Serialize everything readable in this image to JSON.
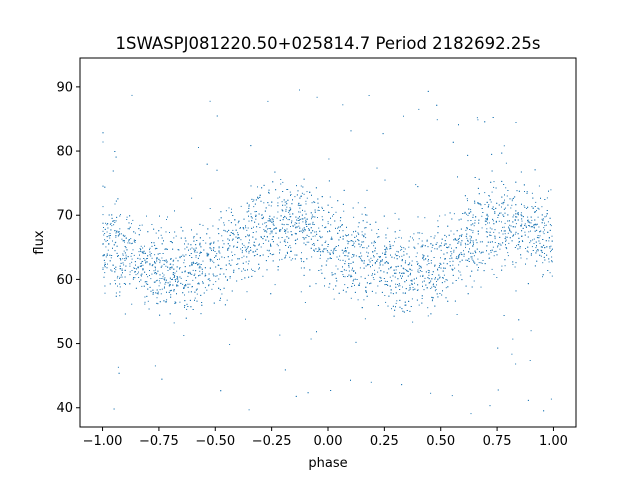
{
  "chart_data": {
    "type": "scatter",
    "title": "1SWASPJ081220.50+025814.7 Period 2182692.25s",
    "xlabel": "phase",
    "ylabel": "flux",
    "xlim": [
      -1.1,
      1.1
    ],
    "ylim": [
      37,
      94.5
    ],
    "xticks": [
      -1.0,
      -0.75,
      -0.5,
      -0.25,
      0.0,
      0.25,
      0.5,
      0.75,
      1.0
    ],
    "xtick_labels": [
      "−1.00",
      "−0.75",
      "−0.50",
      "−0.25",
      "0.00",
      "0.25",
      "0.50",
      "0.75",
      "1.00"
    ],
    "yticks": [
      40,
      50,
      60,
      70,
      80,
      90
    ],
    "ytick_labels": [
      "40",
      "50",
      "60",
      "70",
      "80",
      "90"
    ],
    "grid": false,
    "marker_color": "#1f77b4",
    "phase_range": [
      -1.0,
      1.0
    ],
    "series": [
      {
        "trend": {
          "x": [
            -1.0,
            -0.9,
            -0.8,
            -0.7,
            -0.65,
            -0.6,
            -0.5,
            -0.4,
            -0.3,
            -0.2,
            -0.1,
            0.0,
            0.1,
            0.2,
            0.3,
            0.35,
            0.4,
            0.5,
            0.6,
            0.7,
            0.8,
            0.9,
            1.0
          ],
          "y": [
            66,
            64,
            63,
            61.5,
            61,
            61.5,
            63,
            65.5,
            68,
            69,
            68,
            66,
            64,
            63,
            61.5,
            61,
            61.5,
            63,
            65.5,
            68,
            69,
            68,
            66
          ]
        },
        "spread": 6,
        "outlier_range": [
          39,
          90
        ]
      }
    ]
  }
}
